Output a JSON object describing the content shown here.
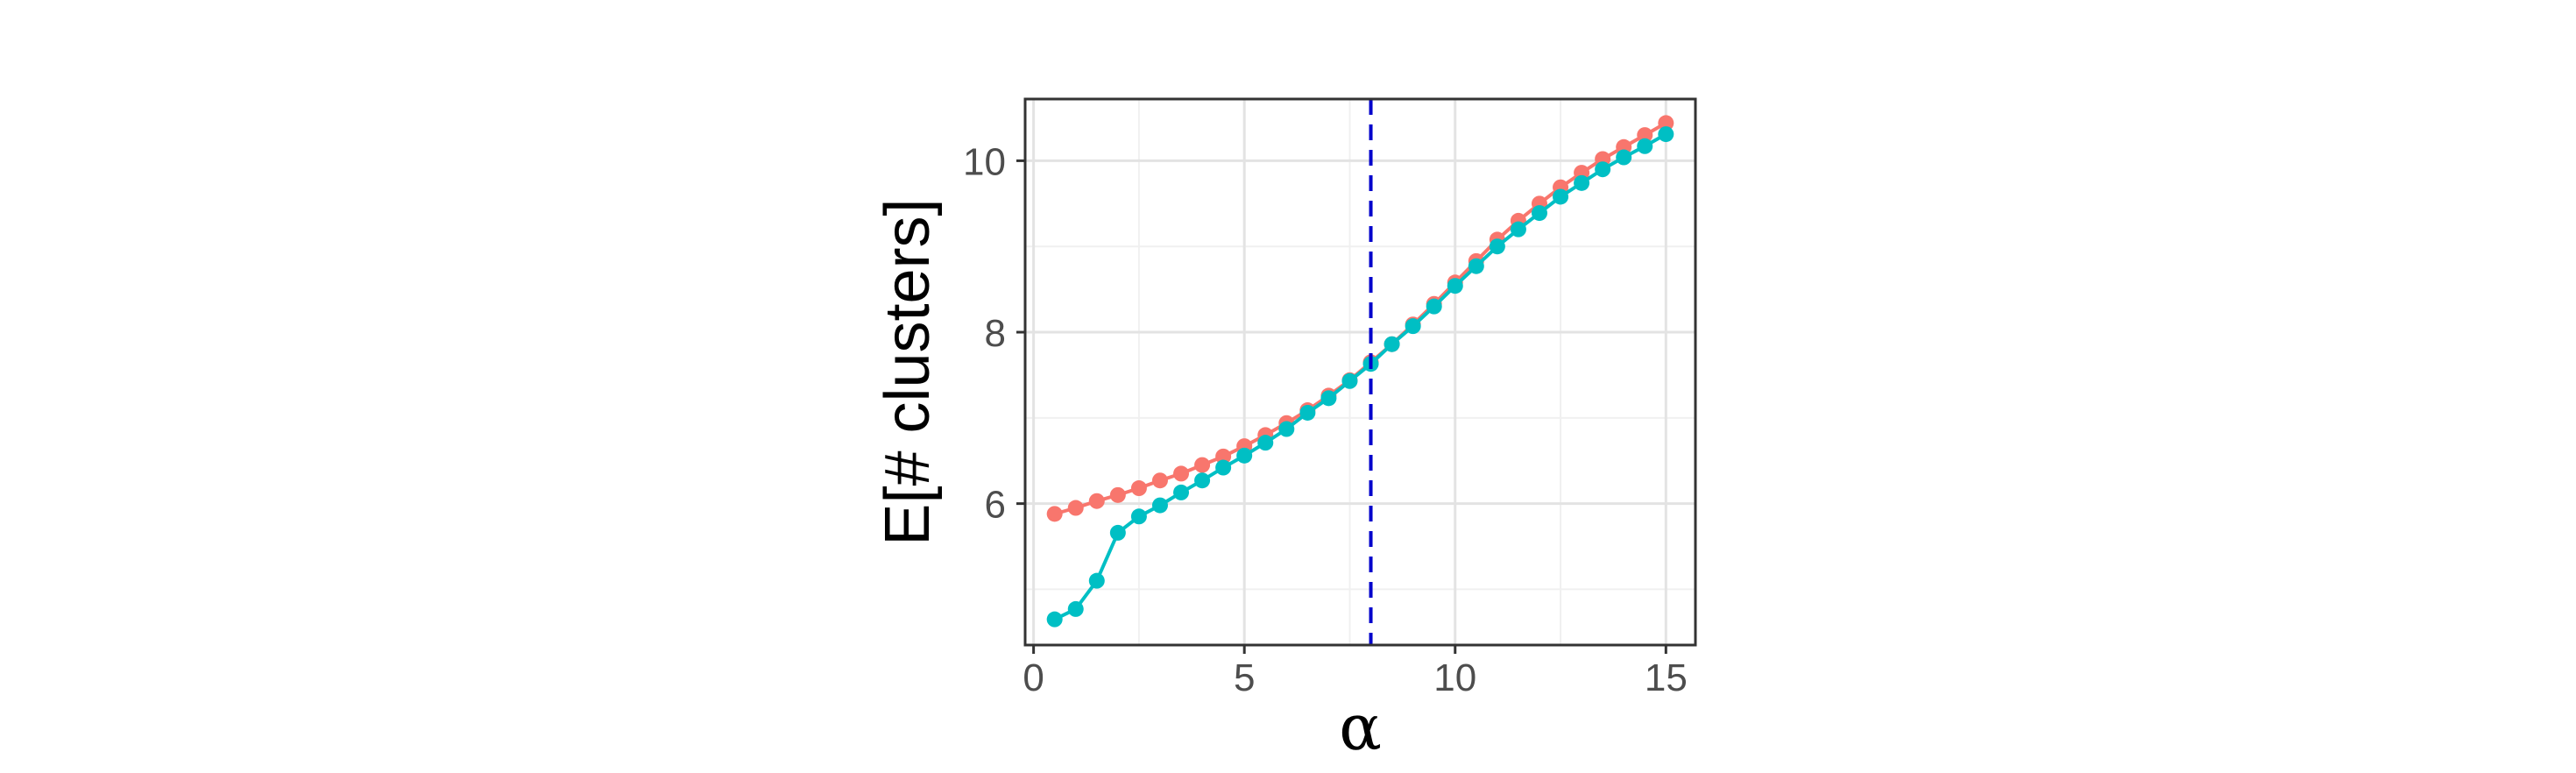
{
  "chart_data": {
    "type": "line",
    "title": "",
    "xlabel": "α",
    "ylabel": "E[# clusters]",
    "xlim": [
      -0.2,
      15.7
    ],
    "ylim": [
      4.35,
      10.72
    ],
    "x_ticks": [
      0,
      5,
      10,
      15
    ],
    "x_tick_labels": [
      "0",
      "5",
      "10",
      "15"
    ],
    "y_ticks": [
      6,
      8,
      10
    ],
    "y_tick_labels": [
      "6",
      "8",
      "10"
    ],
    "grid": true,
    "legend": "none",
    "reference_line": {
      "orientation": "vertical",
      "x": 8,
      "color": "#0000cc",
      "style": "dashed"
    },
    "x": [
      0.5,
      1,
      1.5,
      2,
      2.5,
      3,
      3.5,
      4,
      4.5,
      5,
      5.5,
      6,
      6.5,
      7,
      7.5,
      8,
      8.5,
      9,
      9.5,
      10,
      10.5,
      11,
      11.5,
      12,
      12.5,
      13,
      13.5,
      14,
      14.5,
      15
    ],
    "series": [
      {
        "color": "#f8766d",
        "values": [
          5.88,
          5.95,
          6.03,
          6.1,
          6.18,
          6.27,
          6.35,
          6.45,
          6.55,
          6.67,
          6.8,
          6.94,
          7.09,
          7.26,
          7.44,
          7.65,
          7.86,
          8.09,
          8.33,
          8.58,
          8.83,
          9.08,
          9.3,
          9.5,
          9.69,
          9.86,
          10.02,
          10.16,
          10.3,
          10.44
        ]
      },
      {
        "color": "#00bfc4",
        "values": [
          4.65,
          4.77,
          5.1,
          5.66,
          5.85,
          5.98,
          6.13,
          6.27,
          6.42,
          6.56,
          6.71,
          6.87,
          7.06,
          7.23,
          7.43,
          7.63,
          7.86,
          8.07,
          8.3,
          8.54,
          8.77,
          9.0,
          9.2,
          9.39,
          9.58,
          9.74,
          9.9,
          10.04,
          10.17,
          10.31
        ]
      }
    ]
  }
}
